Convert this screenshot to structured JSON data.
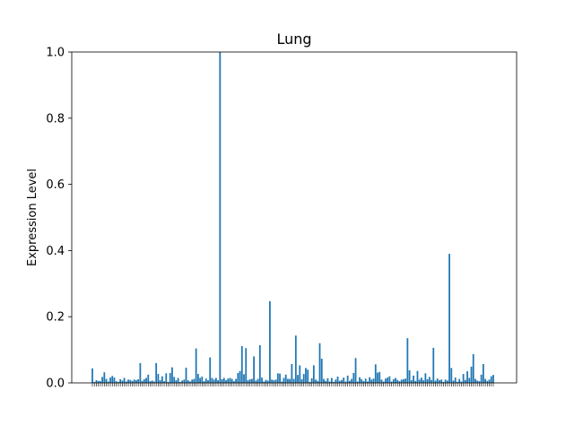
{
  "chart_data": {
    "type": "bar",
    "title": "Lung",
    "xlabel": "",
    "ylabel": "Expression Level",
    "ylim": [
      0,
      1.0
    ],
    "yticks": [
      "0.0",
      "0.2",
      "0.4",
      "0.6",
      "0.8",
      "1.0"
    ],
    "grid": false,
    "legend": "none",
    "bar_color": "#1f77b4",
    "xtick_note": "x tick labels are overlapping and illegible in the original",
    "values": [
      0.044,
      0.003,
      0.008,
      0.006,
      0.005,
      0.018,
      0.032,
      0.012,
      0.004,
      0.016,
      0.021,
      0.016,
      0.005,
      0.003,
      0.011,
      0.007,
      0.015,
      0.004,
      0.01,
      0.009,
      0.006,
      0.01,
      0.008,
      0.011,
      0.06,
      0.006,
      0.011,
      0.015,
      0.025,
      0.005,
      0.007,
      0.004,
      0.06,
      0.027,
      0.008,
      0.02,
      0.005,
      0.029,
      0.003,
      0.03,
      0.047,
      0.018,
      0.008,
      0.015,
      0.003,
      0.007,
      0.01,
      0.046,
      0.008,
      0.004,
      0.01,
      0.012,
      0.104,
      0.027,
      0.015,
      0.019,
      0.005,
      0.013,
      0.008,
      0.077,
      0.015,
      0.01,
      0.015,
      0.008,
      1.0,
      0.011,
      0.015,
      0.008,
      0.013,
      0.015,
      0.012,
      0.005,
      0.012,
      0.03,
      0.036,
      0.111,
      0.026,
      0.105,
      0.008,
      0.011,
      0.012,
      0.08,
      0.007,
      0.012,
      0.114,
      0.016,
      0.004,
      0.009,
      0.007,
      0.247,
      0.01,
      0.008,
      0.01,
      0.029,
      0.028,
      0.004,
      0.015,
      0.025,
      0.012,
      0.012,
      0.057,
      0.012,
      0.143,
      0.024,
      0.053,
      0.011,
      0.027,
      0.045,
      0.04,
      0.003,
      0.014,
      0.053,
      0.01,
      0.006,
      0.12,
      0.073,
      0.012,
      0.006,
      0.014,
      0.004,
      0.015,
      0.003,
      0.01,
      0.019,
      0.006,
      0.009,
      0.016,
      0.004,
      0.022,
      0.006,
      0.012,
      0.03,
      0.075,
      0.004,
      0.017,
      0.011,
      0.005,
      0.013,
      0.004,
      0.017,
      0.01,
      0.013,
      0.056,
      0.031,
      0.033,
      0.01,
      0.004,
      0.013,
      0.016,
      0.02,
      0.004,
      0.011,
      0.015,
      0.009,
      0.005,
      0.01,
      0.011,
      0.013,
      0.135,
      0.038,
      0.008,
      0.022,
      0.006,
      0.036,
      0.01,
      0.016,
      0.008,
      0.029,
      0.011,
      0.018,
      0.009,
      0.106,
      0.007,
      0.013,
      0.008,
      0.01,
      0.003,
      0.01,
      0.007,
      0.39,
      0.045,
      0.007,
      0.016,
      0.003,
      0.012,
      0.004,
      0.027,
      0.009,
      0.035,
      0.015,
      0.049,
      0.087,
      0.012,
      0.007,
      0.005,
      0.025,
      0.057,
      0.012,
      0.006,
      0.01,
      0.02,
      0.024
    ]
  }
}
